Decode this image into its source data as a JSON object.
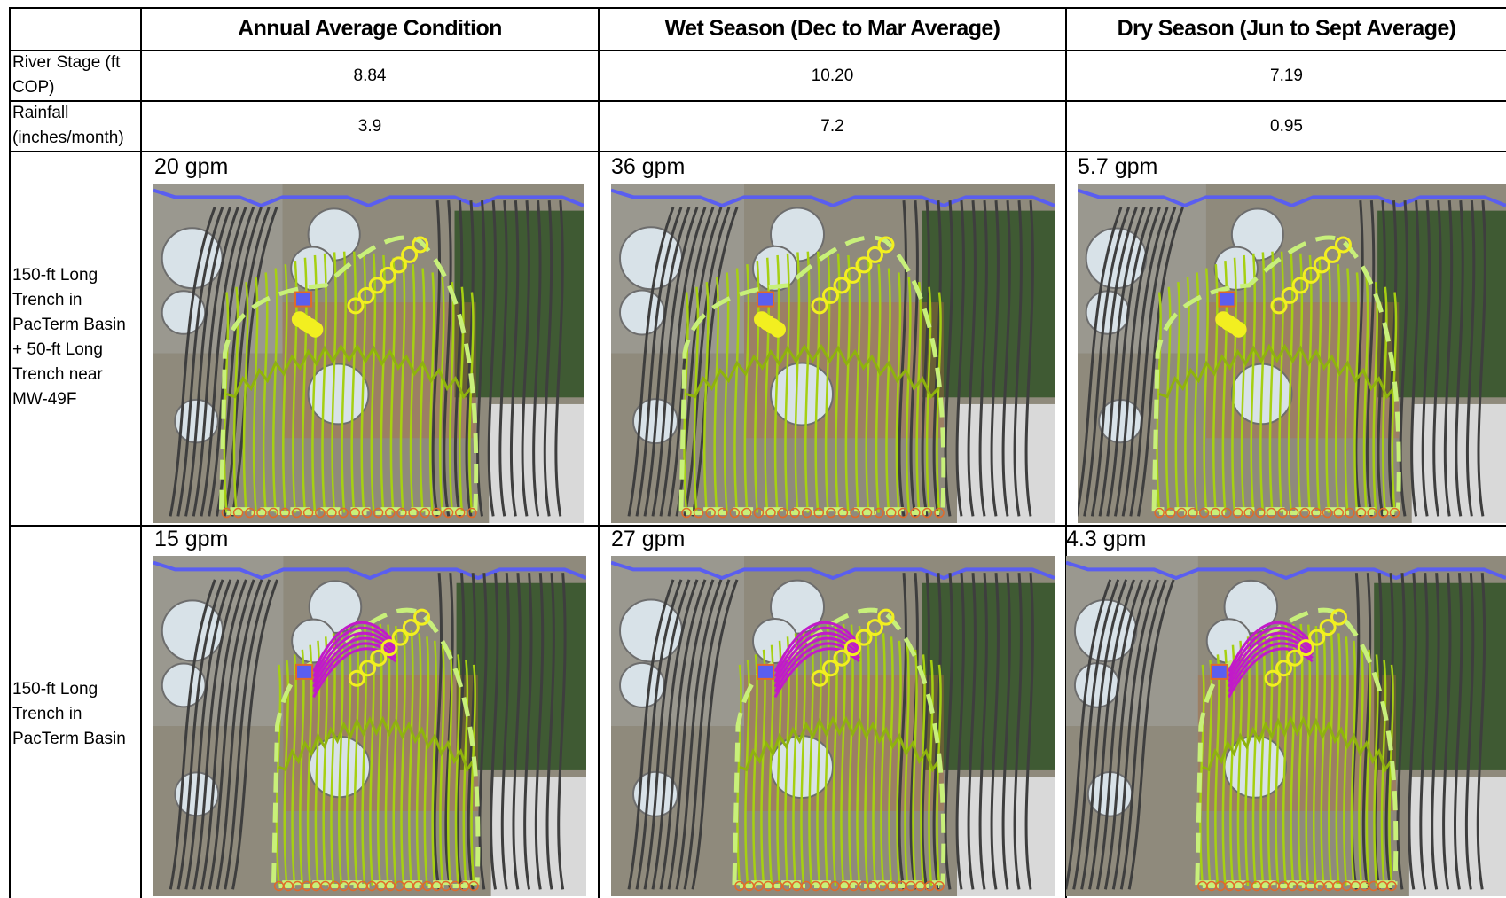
{
  "columns": {
    "annual": "Annual Average Condition",
    "wet": "Wet Season (Dec to Mar Average)",
    "dry": "Dry Season (Jun to Sept Average)"
  },
  "rows": {
    "river_stage": {
      "label_line1": "River Stage (ft",
      "label_line2": "COP)",
      "annual": "8.84",
      "wet": "10.20",
      "dry": "7.19"
    },
    "rainfall": {
      "label_line1": "Rainfall",
      "label_line2": "(inches/month)",
      "annual": "3.9",
      "wet": "7.2",
      "dry": "0.95"
    },
    "scenario_a": {
      "label_lines": [
        "150-ft Long",
        "Trench in",
        "PacTerm Basin",
        "+ 50-ft Long",
        "Trench near",
        "MW-49F"
      ],
      "annual_rate": "20 gpm",
      "wet_rate": "36 gpm",
      "dry_rate": "5.7 gpm"
    },
    "scenario_b": {
      "label_lines": [
        "150-ft Long",
        "Trench in",
        "PacTerm Basin"
      ],
      "annual_rate": "15 gpm",
      "wet_rate": "27 gpm",
      "dry_rate": "4.3 gpm"
    }
  },
  "colors": {
    "flowline_capture": "#a6d011",
    "flowline_bypass": "#3e3e3e",
    "river_boundary": "#5a5ef0",
    "capture_zone_dashed": "#c8f07a",
    "trench_marker": "#f2ef20",
    "particle_path_secondary": "#c21ac9",
    "well_marker": "#5a5ef0"
  }
}
